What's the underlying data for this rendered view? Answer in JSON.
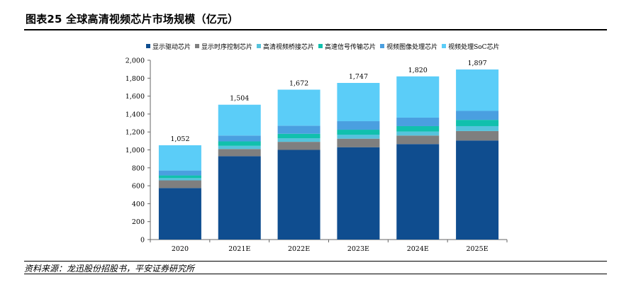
{
  "figure": {
    "title": "图表25    全球高清视频芯片市场规模（亿元）",
    "source": "资料来源：龙迅股份招股书，平安证券研究所"
  },
  "chart_data": {
    "type": "bar",
    "stacked": true,
    "title": "",
    "xlabel": "",
    "ylabel": "",
    "categories": [
      "2020",
      "2021E",
      "2022E",
      "2023E",
      "2024E",
      "2025E"
    ],
    "ylim": [
      0,
      2000
    ],
    "yticks": [
      0,
      200,
      400,
      600,
      800,
      1000,
      1200,
      1400,
      1600,
      1800,
      2000
    ],
    "ytick_labels": [
      "0",
      "200",
      "400",
      "600",
      "800",
      "1,000",
      "1,200",
      "1,400",
      "1,600",
      "1,800",
      "2,000"
    ],
    "grid": false,
    "legend_position": "top",
    "series": [
      {
        "name": "显示驱动芯片",
        "color": "#0f4d8f",
        "values": [
          575,
          930,
          1000,
          1030,
          1065,
          1105
        ]
      },
      {
        "name": "显示时序控制芯片",
        "color": "#7f7f7f",
        "values": [
          85,
          80,
          90,
          95,
          95,
          105
        ]
      },
      {
        "name": "高清视频桥接芯片",
        "color": "#56c3dc",
        "values": [
          25,
          35,
          40,
          45,
          45,
          55
        ]
      },
      {
        "name": "高速信号传输芯片",
        "color": "#11c0ad",
        "values": [
          30,
          50,
          50,
          55,
          60,
          70
        ]
      },
      {
        "name": "视频图像处理芯片",
        "color": "#4a9fe0",
        "values": [
          55,
          65,
          90,
          95,
          95,
          100
        ]
      },
      {
        "name": "视频处理SoC芯片",
        "color": "#5bcdf8",
        "values": [
          282,
          344,
          402,
          427,
          460,
          462
        ]
      }
    ],
    "totals": [
      1052,
      1504,
      1672,
      1747,
      1820,
      1897
    ],
    "total_labels": [
      "1,052",
      "1,504",
      "1,672",
      "1,747",
      "1,820",
      "1,897"
    ]
  }
}
